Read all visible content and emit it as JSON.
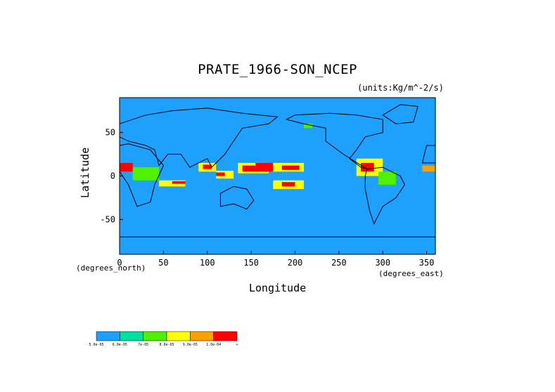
{
  "chart_data": {
    "type": "heatmap",
    "title": "PRATE_1966-SON_NCEP",
    "units": "(units:Kg/m^-2/s)",
    "xlabel": "Longitude",
    "ylabel": "Latitude",
    "x_unit_label": "(degrees_east)",
    "y_unit_label": "(degrees_north)",
    "xlim": [
      0,
      360
    ],
    "ylim": [
      -90,
      90
    ],
    "xticks": [
      "0",
      "50",
      "100",
      "150",
      "200",
      "250",
      "300",
      "350"
    ],
    "yticks": [
      "50",
      "0",
      "-50"
    ],
    "colorbar": {
      "colors": [
        "#1ea0ff",
        "#00e0a0",
        "#50f000",
        "#ffff00",
        "#ffa000",
        "#ff0000"
      ],
      "labels": [
        "5.0e-05",
        "6.0e-05",
        "7e-05",
        "8.0e-05",
        "9.0e-05",
        "1.0e-04",
        "∞"
      ]
    },
    "regions": [
      {
        "lon": [
          0,
          15
        ],
        "lat": [
          5,
          15
        ],
        "level": 5
      },
      {
        "lon": [
          15,
          45
        ],
        "lat": [
          -5,
          10
        ],
        "level": 2
      },
      {
        "lon": [
          45,
          75
        ],
        "lat": [
          -12,
          -5
        ],
        "level": 3
      },
      {
        "lon": [
          60,
          75
        ],
        "lat": [
          -9,
          -6
        ],
        "level": 5
      },
      {
        "lon": [
          90,
          110
        ],
        "lat": [
          5,
          15
        ],
        "level": 3
      },
      {
        "lon": [
          95,
          105
        ],
        "lat": [
          8,
          13
        ],
        "level": 5
      },
      {
        "lon": [
          110,
          130
        ],
        "lat": [
          -3,
          6
        ],
        "level": 3
      },
      {
        "lon": [
          110,
          120
        ],
        "lat": [
          0,
          4
        ],
        "level": 5
      },
      {
        "lon": [
          135,
          170
        ],
        "lat": [
          3,
          15
        ],
        "level": 3
      },
      {
        "lon": [
          140,
          155
        ],
        "lat": [
          5,
          12
        ],
        "level": 5
      },
      {
        "lon": [
          155,
          175
        ],
        "lat": [
          5,
          15
        ],
        "level": 5
      },
      {
        "lon": [
          175,
          210
        ],
        "lat": [
          5,
          15
        ],
        "level": 3
      },
      {
        "lon": [
          185,
          205
        ],
        "lat": [
          7,
          12
        ],
        "level": 5
      },
      {
        "lon": [
          175,
          210
        ],
        "lat": [
          -15,
          -5
        ],
        "level": 3
      },
      {
        "lon": [
          185,
          200
        ],
        "lat": [
          -12,
          -7
        ],
        "level": 5
      },
      {
        "lon": [
          270,
          300
        ],
        "lat": [
          0,
          20
        ],
        "level": 3
      },
      {
        "lon": [
          275,
          290
        ],
        "lat": [
          5,
          15
        ],
        "level": 5
      },
      {
        "lon": [
          295,
          315
        ],
        "lat": [
          -10,
          5
        ],
        "level": 2
      },
      {
        "lon": [
          345,
          360
        ],
        "lat": [
          5,
          12
        ],
        "level": 4
      },
      {
        "lon": [
          210,
          220
        ],
        "lat": [
          55,
          60
        ],
        "level": 2
      }
    ]
  }
}
